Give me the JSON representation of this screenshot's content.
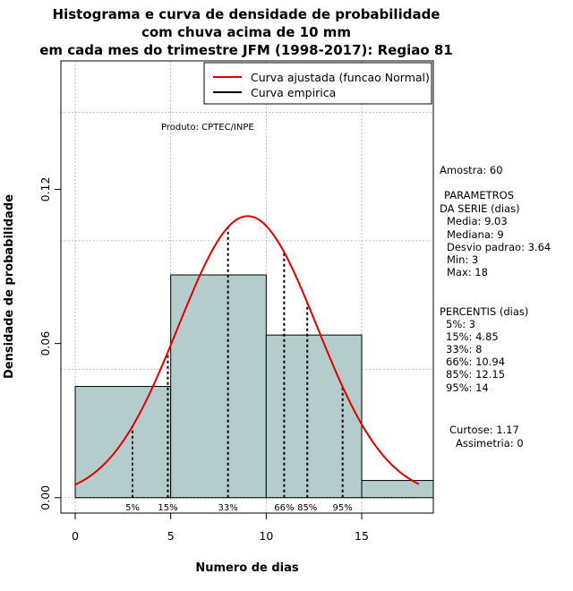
{
  "title": {
    "line1": "Histograma e curva de densidade de probabilidade",
    "line2": "com chuva acima de 10 mm",
    "line3": "em cada mes do trimestre JFM (1998-2017): Regiao 81"
  },
  "producer": "Produto: CPTEC/INPE",
  "legend": {
    "fitted_label": "Curva ajustada (funcao Normal)",
    "empirical_label": "Curva empirica"
  },
  "stats": {
    "sample": "Amostra: 60",
    "params_title": "PARAMETROS",
    "params_subtitle": "DA SERIE (dias)",
    "mean": "Media: 9.03",
    "median": "Mediana: 9",
    "sd": "Desvio padrao: 3.64",
    "min": "Min: 3",
    "max": "Max: 18",
    "percentiles_title": "PERCENTIS (dias)",
    "p5": "5%: 3",
    "p15": "15%: 4.85",
    "p33": "33%: 8",
    "p66": "66%: 10.94",
    "p85": "85%: 12.15",
    "p95": "95%: 14",
    "kurtosis": "Curtose: 1.17",
    "skewness": "Assimetria: 0"
  },
  "colors": {
    "bar_fill": "#b4cccc",
    "fitted_curve": "#e00000",
    "empirical": "#000000",
    "grid": "#b0b0b0"
  },
  "chart_data": {
    "type": "bar",
    "xlabel": "Numero de dias",
    "ylabel": "Densidade de probabilidade",
    "xlim": [
      -0.75,
      18.75
    ],
    "ylim": [
      -0.006,
      0.17
    ],
    "x_ticks": [
      0,
      5,
      10,
      15
    ],
    "y_ticks": [
      0.0,
      0.06,
      0.12
    ],
    "y_tick_labels": [
      "0.00",
      "0.06",
      "0.12"
    ],
    "grid_x": [
      0,
      5,
      10,
      15
    ],
    "grid_y": [
      0.0,
      0.05,
      0.1,
      0.15
    ],
    "histogram": [
      {
        "x0": 0,
        "x1": 5,
        "density": 0.0433
      },
      {
        "x0": 5,
        "x1": 10,
        "density": 0.0867
      },
      {
        "x0": 10,
        "x1": 15,
        "density": 0.0633
      },
      {
        "x0": 15,
        "x1": 18.75,
        "density": 0.0067
      }
    ],
    "fitted_normal": {
      "mean": 9.03,
      "sd": 3.64,
      "x_from": 0,
      "x_to": 18
    },
    "percentile_lines": [
      {
        "label": "5%",
        "x": 3
      },
      {
        "label": "15%",
        "x": 4.85
      },
      {
        "label": "33%",
        "x": 8
      },
      {
        "label": "66%",
        "x": 10.94
      },
      {
        "label": "85%",
        "x": 12.15
      },
      {
        "label": "95%",
        "x": 14
      }
    ],
    "legend_position": "top-right",
    "grid": true
  }
}
